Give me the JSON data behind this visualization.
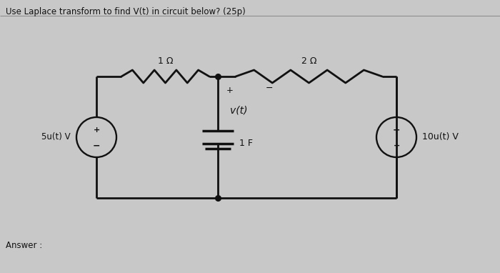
{
  "title": "Use Laplace transform to find V(t) in circuit below? (25p)",
  "title_fontsize": 8.5,
  "bg_color": "#c8c8c8",
  "paper_color": "#e8e6e0",
  "line_color": "#111111",
  "answer_label": "Answer :",
  "source_label": "5u(t) V",
  "res1_label": "1 Ω",
  "res2_label": "2 Ω",
  "cap_label": "1 F",
  "cap_v_label": "v(t)",
  "vsource2_label": "10u(t) V",
  "lw": 2.0
}
